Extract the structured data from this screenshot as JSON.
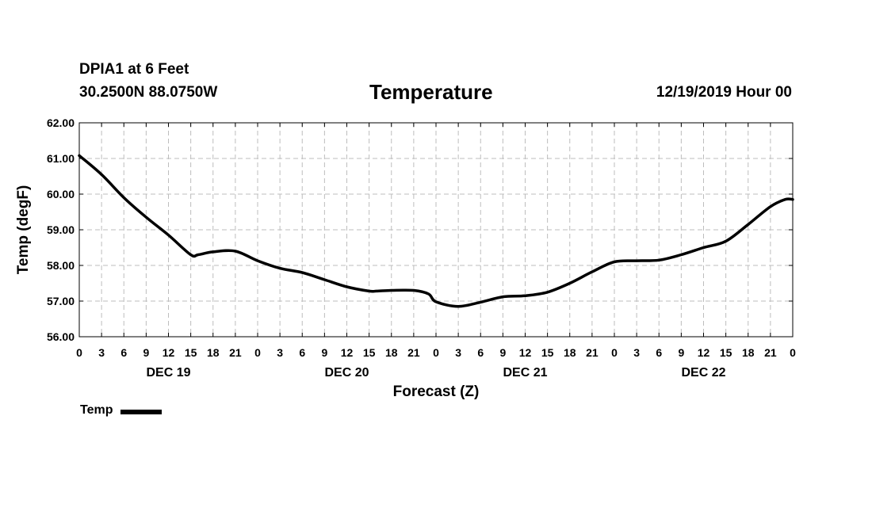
{
  "header": {
    "station": "DPIA1 at 6 Feet",
    "coords": "30.2500N 88.0750W",
    "runtime": "12/19/2019 Hour 00"
  },
  "chart_data": {
    "type": "line",
    "title": "Temperature",
    "xlabel": "Forecast (Z)",
    "ylabel": "Temp (degF)",
    "ylim": [
      56.0,
      62.0
    ],
    "yticks": [
      "56.00",
      "57.00",
      "58.00",
      "59.00",
      "60.00",
      "61.00",
      "62.00"
    ],
    "xlim": [
      0,
      96
    ],
    "xtick_labels": [
      "0",
      "3",
      "6",
      "9",
      "12",
      "15",
      "18",
      "21",
      "0",
      "3",
      "6",
      "9",
      "12",
      "15",
      "18",
      "21",
      "0",
      "3",
      "6",
      "9",
      "12",
      "15",
      "18",
      "21",
      "0",
      "3",
      "6",
      "9",
      "12",
      "15",
      "18",
      "21",
      "0"
    ],
    "day_labels": [
      {
        "label": "DEC 19",
        "hour": 12
      },
      {
        "label": "DEC 20",
        "hour": 36
      },
      {
        "label": "DEC 21",
        "hour": 60
      },
      {
        "label": "DEC 22",
        "hour": 84
      }
    ],
    "grid": true,
    "legend_position": "bottom-left",
    "series": [
      {
        "name": "Temp",
        "color": "#000000",
        "x": [
          0,
          3,
          6,
          9,
          12,
          15,
          16,
          18,
          21,
          24,
          27,
          30,
          33,
          36,
          39,
          40,
          42,
          45,
          47,
          48,
          51,
          54,
          57,
          60,
          63,
          66,
          69,
          72,
          75,
          78,
          81,
          84,
          87,
          90,
          93,
          95,
          96
        ],
        "y": [
          61.08,
          60.55,
          59.9,
          59.35,
          58.85,
          58.3,
          58.3,
          58.38,
          58.4,
          58.13,
          57.92,
          57.8,
          57.6,
          57.4,
          57.28,
          57.28,
          57.3,
          57.3,
          57.2,
          56.98,
          56.85,
          56.97,
          57.12,
          57.15,
          57.25,
          57.5,
          57.82,
          58.1,
          58.13,
          58.15,
          58.3,
          58.5,
          58.68,
          59.15,
          59.65,
          59.85,
          59.85
        ]
      }
    ]
  }
}
